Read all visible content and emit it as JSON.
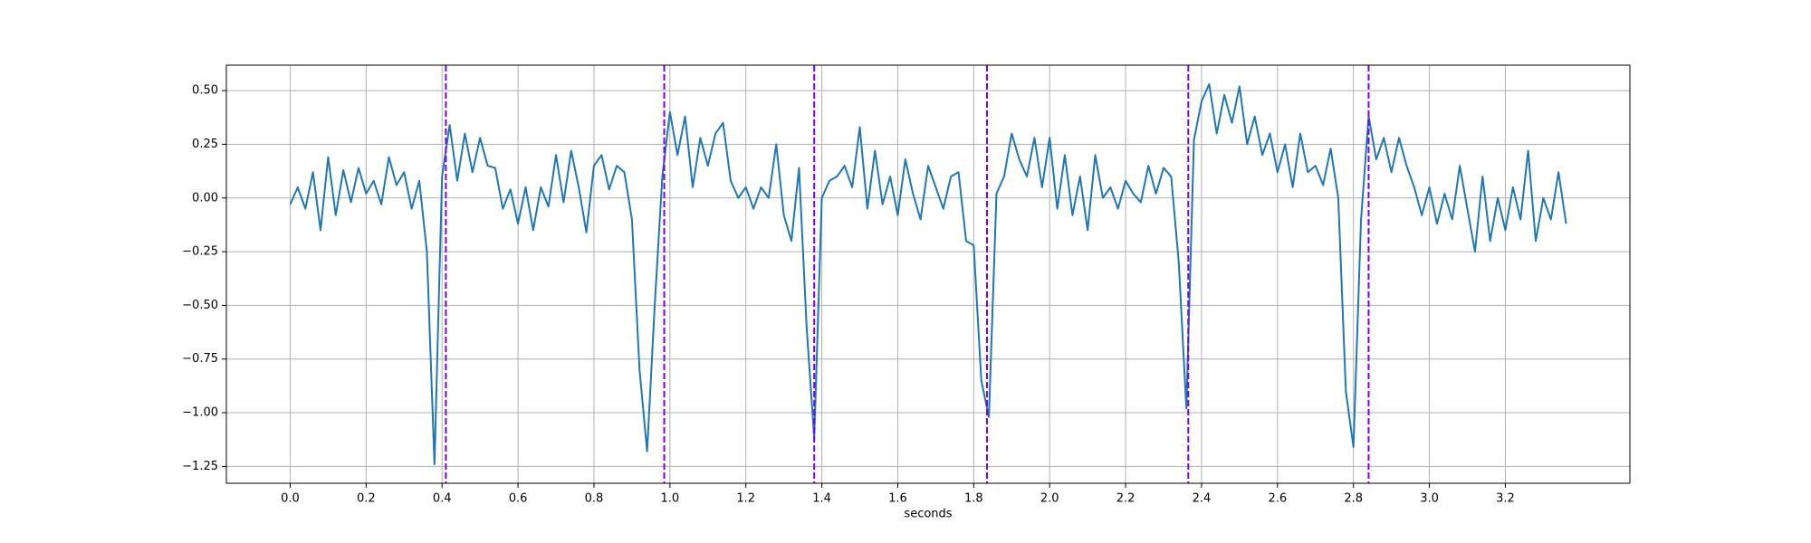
{
  "chart_data": {
    "type": "line",
    "xlabel": "seconds",
    "x": [
      0,
      0.02,
      0.04,
      0.06,
      0.08,
      0.1,
      0.12,
      0.14,
      0.16,
      0.18,
      0.2,
      0.22,
      0.24,
      0.26,
      0.28,
      0.3,
      0.32,
      0.34,
      0.36,
      0.38,
      0.4,
      0.42,
      0.44,
      0.46,
      0.48,
      0.5,
      0.52,
      0.54,
      0.56,
      0.58,
      0.6,
      0.62,
      0.64,
      0.66,
      0.68,
      0.7,
      0.72,
      0.74,
      0.76,
      0.78,
      0.8,
      0.82,
      0.84,
      0.86,
      0.88,
      0.9,
      0.92,
      0.94,
      0.96,
      0.98,
      1,
      1.02,
      1.04,
      1.06,
      1.08,
      1.1,
      1.12,
      1.14,
      1.16,
      1.18,
      1.2,
      1.22,
      1.24,
      1.26,
      1.28,
      1.3,
      1.32,
      1.34,
      1.36,
      1.38,
      1.4,
      1.42,
      1.44,
      1.46,
      1.48,
      1.5,
      1.52,
      1.54,
      1.56,
      1.58,
      1.6,
      1.62,
      1.64,
      1.66,
      1.68,
      1.7,
      1.72,
      1.74,
      1.76,
      1.78,
      1.8,
      1.82,
      1.84,
      1.86,
      1.88,
      1.9,
      1.92,
      1.94,
      1.96,
      1.98,
      2,
      2.02,
      2.04,
      2.06,
      2.08,
      2.1,
      2.12,
      2.14,
      2.16,
      2.18,
      2.2,
      2.22,
      2.24,
      2.26,
      2.28,
      2.3,
      2.32,
      2.34,
      2.36,
      2.38,
      2.4,
      2.42,
      2.44,
      2.46,
      2.48,
      2.5,
      2.52,
      2.54,
      2.56,
      2.58,
      2.6,
      2.62,
      2.64,
      2.66,
      2.68,
      2.7,
      2.72,
      2.74,
      2.76,
      2.78,
      2.8,
      2.82,
      2.84,
      2.86,
      2.88,
      2.9,
      2.92,
      2.94,
      2.96,
      2.98,
      3,
      3.02,
      3.04,
      3.06,
      3.08,
      3.1,
      3.12,
      3.14,
      3.16,
      3.18,
      3.2,
      3.22,
      3.24,
      3.26,
      3.28,
      3.3,
      3.32,
      3.34,
      3.36
    ],
    "series": [
      {
        "color": "#1f77b4",
        "values": [
          -0.03,
          0.05,
          -0.05,
          0.12,
          -0.15,
          0.19,
          -0.08,
          0.13,
          -0.02,
          0.14,
          0.02,
          0.08,
          -0.03,
          0.19,
          0.06,
          0.12,
          -0.05,
          0.08,
          -0.25,
          -1.24,
          0.1,
          0.34,
          0.08,
          0.3,
          0.12,
          0.28,
          0.15,
          0.14,
          -0.05,
          0.04,
          -0.12,
          0.05,
          -0.15,
          0.05,
          -0.04,
          0.2,
          -0.02,
          0.22,
          0.05,
          -0.16,
          0.15,
          0.2,
          0.04,
          0.15,
          0.12,
          -0.1,
          -0.8,
          -1.18,
          -0.5,
          0.1,
          0.4,
          0.2,
          0.38,
          0.05,
          0.28,
          0.15,
          0.3,
          0.35,
          0.08,
          0.0,
          0.05,
          -0.05,
          0.05,
          0.0,
          0.25,
          -0.08,
          -0.2,
          0.14,
          -0.6,
          -1.12,
          0.0,
          0.08,
          0.1,
          0.15,
          0.05,
          0.33,
          -0.05,
          0.22,
          -0.03,
          0.1,
          -0.08,
          0.18,
          0.02,
          -0.1,
          0.15,
          0.05,
          -0.05,
          0.1,
          0.12,
          -0.2,
          -0.22,
          -0.85,
          -1.02,
          0.02,
          0.1,
          0.3,
          0.18,
          0.1,
          0.28,
          0.05,
          0.28,
          -0.05,
          0.2,
          -0.08,
          0.1,
          -0.15,
          0.2,
          0.0,
          0.05,
          -0.05,
          0.08,
          0.02,
          -0.02,
          0.15,
          0.02,
          0.14,
          0.1,
          -0.3,
          -0.98,
          0.27,
          0.45,
          0.53,
          0.3,
          0.48,
          0.35,
          0.52,
          0.25,
          0.38,
          0.2,
          0.3,
          0.12,
          0.25,
          0.05,
          0.3,
          0.12,
          0.15,
          0.06,
          0.23,
          0.0,
          -0.9,
          -1.16,
          -0.1,
          0.38,
          0.18,
          0.28,
          0.12,
          0.28,
          0.15,
          0.05,
          -0.08,
          0.05,
          -0.12,
          0.02,
          -0.1,
          0.15,
          -0.05,
          -0.25,
          0.1,
          -0.2,
          0.0,
          -0.15,
          0.05,
          -0.1,
          0.22,
          -0.2,
          0.0,
          -0.1,
          0.12,
          -0.12
        ]
      }
    ],
    "vlines": [
      0.41,
      0.985,
      1.38,
      1.835,
      2.365,
      2.84
    ],
    "vline_color": "#7b00f0",
    "xlim": [
      -0.168,
      3.528
    ],
    "ylim": [
      -1.3285,
      0.6185
    ],
    "xticks": [
      {
        "value": 0,
        "label": "0.0"
      },
      0.2,
      0.4,
      0.6,
      0.8,
      {
        "value": 1,
        "label": "1.0"
      },
      1.2,
      1.4,
      1.6,
      1.8,
      {
        "value": 2,
        "label": "2.0"
      },
      2.2,
      2.4,
      2.6,
      2.8,
      {
        "value": 3,
        "label": "3.0"
      },
      3.2
    ],
    "yticks": [
      {
        "value": -1.25,
        "label": "−1.25"
      },
      {
        "value": -1,
        "label": "−1.00"
      },
      {
        "value": -0.75,
        "label": "−0.75"
      },
      {
        "value": -0.5,
        "label": "−0.50"
      },
      {
        "value": -0.25,
        "label": "−0.25"
      },
      {
        "value": 0,
        "label": "0.00"
      },
      0.25,
      {
        "value": 0.5,
        "label": "0.50"
      }
    ],
    "grid": true
  }
}
